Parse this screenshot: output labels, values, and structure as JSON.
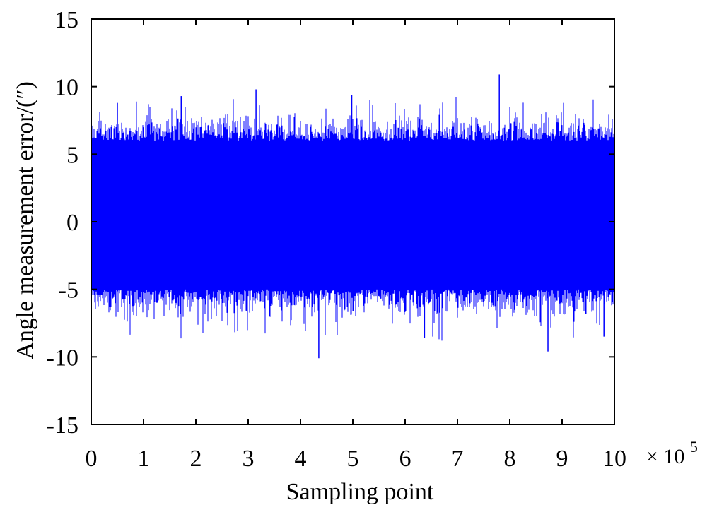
{
  "chart_data": {
    "type": "line",
    "xlabel": "Sampling point",
    "ylabel": "Angle measurement error/(″)",
    "x_scale_label": "× 10",
    "x_scale_exponent": "5",
    "xlim": [
      0,
      10
    ],
    "ylim": [
      -15,
      15
    ],
    "xticks": [
      0,
      1,
      2,
      3,
      4,
      5,
      6,
      7,
      8,
      9,
      10
    ],
    "yticks": [
      15,
      10,
      5,
      0,
      -5,
      -10,
      -15
    ],
    "xtick_labels": [
      "0",
      "1",
      "2",
      "3",
      "4",
      "5",
      "6",
      "7",
      "8",
      "9",
      "10"
    ],
    "ytick_labels": [
      "15",
      "10",
      "5",
      "0",
      "-5",
      "-10",
      "-15"
    ],
    "grid": false,
    "series": [
      {
        "color": "#0000ff",
        "n_points": 1000000,
        "description_values": {
          "x_range": [
            0,
            10
          ],
          "typical_band": [
            -5,
            6
          ],
          "max_peak": {
            "x": 7.8,
            "y": 10.9
          },
          "min_peak": {
            "x": 4.35,
            "y": -10.1
          },
          "notable_peaks": [
            {
              "x": 0.5,
              "y": 8.8
            },
            {
              "x": 1.72,
              "y": 9.3
            },
            {
              "x": 3.15,
              "y": 9.8
            },
            {
              "x": 4.98,
              "y": 9.4
            },
            {
              "x": 7.8,
              "y": 10.9
            },
            {
              "x": 9.03,
              "y": 8.8
            }
          ],
          "notable_troughs": [
            {
              "x": 4.35,
              "y": -10.1
            },
            {
              "x": 8.73,
              "y": -9.6
            },
            {
              "x": 6.37,
              "y": -8.6
            },
            {
              "x": 6.53,
              "y": -8.5
            },
            {
              "x": 9.8,
              "y": -8.5
            }
          ]
        }
      }
    ]
  }
}
